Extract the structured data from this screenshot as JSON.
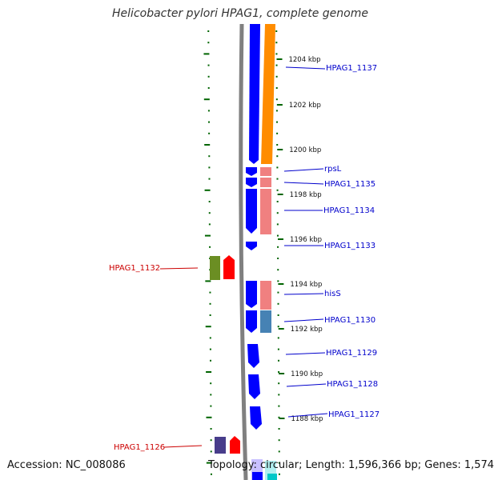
{
  "title": "Helicobacter pylori HPAG1, complete genome",
  "accession": "Accession: NC_008086",
  "topology": "Topology: circular; Length: 1,596,366 bp; Genes: 1,574",
  "colors": {
    "backbone": "#808080",
    "forward_cds": "#0000ff",
    "reverse_gene": "#ff0000",
    "gene_bar": "#ff8c00",
    "track_pink": "#f08080",
    "track_steelblue": "#4682b4",
    "track_olive": "#6b8e23",
    "track_slate": "#483d8b",
    "tick_green": "#006400",
    "label_blue": "#0000cc",
    "label_red": "#cc0000"
  },
  "kbp_ticks": [
    "1204 kbp",
    "1202 kbp",
    "1200 kbp",
    "1198 kbp",
    "1196 kbp",
    "1194 kbp",
    "1192 kbp",
    "1190 kbp",
    "1188 kbp"
  ],
  "gene_labels": {
    "hpag1_1137": "HPAG1_1137",
    "rpsl": "rpsL",
    "hpag1_1135": "HPAG1_1135",
    "hpag1_1134": "HPAG1_1134",
    "hpag1_1133": "HPAG1_1133",
    "hpag1_1132": "HPAG1_1132",
    "hiss": "hisS",
    "hpag1_1130": "HPAG1_1130",
    "hpag1_1129": "HPAG1_1129",
    "hpag1_1128": "HPAG1_1128",
    "hpag1_1127": "HPAG1_1127",
    "hpag1_1126": "HPAG1_1126"
  }
}
